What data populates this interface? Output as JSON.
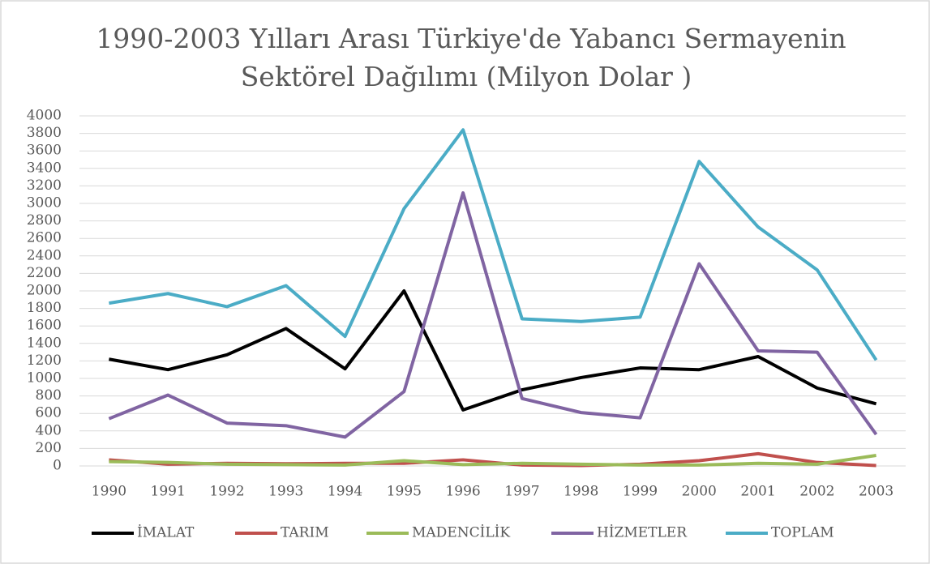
{
  "chart_data": {
    "type": "line",
    "title": [
      "1990-2003 Yılları Arası Türkiye'de Yabancı Sermayenin",
      "Sektörel Dağılımı (Milyon Dolar )"
    ],
    "categories": [
      "1990",
      "1991",
      "1992",
      "1993",
      "1994",
      "1995",
      "1996",
      "1997",
      "1998",
      "1999",
      "2000",
      "2001",
      "2002",
      "2003"
    ],
    "series": [
      {
        "name": "İMALAT",
        "color": "#000000",
        "values": [
          1220,
          1100,
          1270,
          1570,
          1110,
          2000,
          640,
          870,
          1010,
          1120,
          1100,
          1250,
          890,
          710
        ]
      },
      {
        "name": "TARIM",
        "color": "#c0504d",
        "values": [
          70,
          20,
          30,
          25,
          30,
          30,
          70,
          10,
          5,
          20,
          60,
          140,
          40,
          5
        ]
      },
      {
        "name": "MADENCİLİK",
        "color": "#9bbb59",
        "values": [
          50,
          40,
          20,
          15,
          10,
          60,
          15,
          30,
          20,
          10,
          10,
          30,
          20,
          120
        ]
      },
      {
        "name": "HİZMETLER",
        "color": "#8064a2",
        "values": [
          540,
          810,
          490,
          460,
          330,
          850,
          3120,
          770,
          610,
          550,
          2310,
          1315,
          1300,
          360
        ]
      },
      {
        "name": "TOPLAM",
        "color": "#4bacc6",
        "values": [
          1860,
          1970,
          1820,
          2060,
          1480,
          2940,
          3840,
          1680,
          1650,
          1700,
          3480,
          2730,
          2240,
          1210
        ]
      }
    ],
    "ylim": [
      0,
      4000
    ],
    "yticks": [
      0,
      200,
      400,
      600,
      800,
      1000,
      1200,
      1400,
      1600,
      1800,
      2000,
      2200,
      2400,
      2600,
      2800,
      3000,
      3200,
      3400,
      3600,
      3800,
      4000
    ],
    "grid": true,
    "legend": "bottom"
  }
}
